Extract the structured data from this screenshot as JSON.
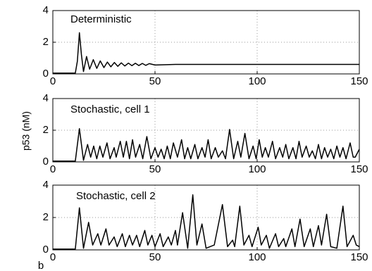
{
  "panel_label": "b",
  "chart_data": [
    {
      "type": "line",
      "title": "Deterministic",
      "color": "#000000",
      "grid": true,
      "xlim": [
        0,
        150
      ],
      "ylim": [
        0,
        4
      ],
      "xticks": [
        0,
        50,
        100,
        150
      ],
      "yticks": [
        0,
        2,
        4
      ],
      "x": [
        0,
        11,
        12,
        13,
        14,
        15,
        16.5,
        18,
        19.8,
        21.5,
        23.2,
        25,
        26.7,
        28.4,
        30.1,
        31.8,
        33.5,
        35.2,
        37,
        38.7,
        40.4,
        42.1,
        43.8,
        45.5,
        47.2,
        50,
        60,
        150
      ],
      "values": [
        0.05,
        0.05,
        0.8,
        2.6,
        1.2,
        0.15,
        1.1,
        0.3,
        0.9,
        0.35,
        0.82,
        0.4,
        0.75,
        0.45,
        0.72,
        0.48,
        0.7,
        0.5,
        0.68,
        0.52,
        0.67,
        0.53,
        0.66,
        0.54,
        0.65,
        0.56,
        0.6,
        0.6
      ]
    },
    {
      "type": "line",
      "title": "Stochastic, cell 1",
      "ylabel": "p53 (nM)",
      "color": "#000000",
      "grid": true,
      "xlim": [
        0,
        150
      ],
      "ylim": [
        0,
        4
      ],
      "xticks": [
        0,
        50,
        100,
        150
      ],
      "yticks": [
        0,
        2,
        4
      ],
      "x": [
        0,
        11,
        13,
        15,
        17,
        18.5,
        20,
        21.5,
        23,
        24.5,
        26.5,
        28,
        30,
        31,
        33,
        34.5,
        36,
        37.5,
        39,
        40.5,
        42.5,
        44,
        46,
        48,
        50,
        51.5,
        53,
        54.5,
        56,
        57.5,
        59,
        61,
        63,
        64.5,
        66,
        67.5,
        69.5,
        71,
        73,
        74.5,
        76,
        77.5,
        79.5,
        81,
        83,
        84.5,
        86.5,
        88.5,
        90.5,
        92,
        94,
        96,
        98,
        99.5,
        101,
        102.5,
        104,
        105.5,
        107.5,
        109,
        111,
        112.5,
        114,
        115.5,
        117.5,
        119,
        120.5,
        122,
        124,
        125.5,
        127,
        128.5,
        130,
        131.5,
        133,
        134.5,
        136,
        137.5,
        139,
        140.5,
        142,
        143.5,
        145.5,
        147,
        148,
        150
      ],
      "values": [
        0.05,
        0.05,
        2.1,
        0.1,
        1.1,
        0.3,
        1.0,
        0.2,
        1.0,
        0.3,
        1.2,
        0.2,
        0.9,
        0.3,
        1.3,
        0.3,
        1.3,
        0.2,
        1.4,
        0.3,
        1.1,
        0.2,
        1.6,
        0.2,
        0.9,
        0.3,
        0.8,
        0.2,
        1.0,
        0.2,
        1.2,
        0.3,
        1.4,
        0.2,
        0.9,
        0.2,
        1.1,
        0.2,
        0.9,
        0.3,
        1.4,
        0.2,
        0.9,
        0.3,
        0.7,
        0.2,
        2.05,
        0.2,
        1.3,
        0.3,
        1.8,
        0.2,
        1.0,
        0.2,
        1.4,
        0.3,
        0.9,
        0.3,
        1.3,
        0.2,
        0.9,
        0.3,
        1.1,
        0.2,
        0.9,
        0.2,
        1.3,
        0.3,
        1.0,
        0.3,
        0.7,
        0.2,
        1.1,
        0.2,
        0.9,
        0.3,
        0.8,
        0.2,
        1.0,
        0.3,
        0.9,
        0.2,
        1.2,
        0.3,
        0.3,
        0.8
      ]
    },
    {
      "type": "line",
      "title": "Stochastic, cell 2",
      "color": "#000000",
      "grid": true,
      "xlim": [
        0,
        150
      ],
      "ylim": [
        0,
        4
      ],
      "xticks": [
        0,
        50,
        100,
        150
      ],
      "yticks": [
        0,
        2,
        4
      ],
      "x": [
        0,
        11,
        13,
        15,
        17.5,
        19.5,
        22,
        23.5,
        26,
        27.5,
        30,
        31.5,
        34,
        35.5,
        37.5,
        39,
        41,
        42.5,
        45,
        46.5,
        48.5,
        50,
        52.5,
        54,
        56.5,
        58,
        60,
        61,
        63.5,
        66,
        68.5,
        70.5,
        73,
        75,
        79,
        83,
        85.5,
        88,
        89,
        91.5,
        93.5,
        96,
        97.5,
        100.5,
        102,
        104.5,
        106,
        109,
        110.5,
        113,
        114,
        117,
        118.5,
        121,
        123,
        126,
        127.5,
        130,
        131.5,
        134,
        136,
        139,
        142,
        144,
        147,
        148.5,
        150
      ],
      "values": [
        0.05,
        0.05,
        2.6,
        0.1,
        1.7,
        0.3,
        1.0,
        0.3,
        1.3,
        0.3,
        0.8,
        0.2,
        1.0,
        0.2,
        0.9,
        0.3,
        0.9,
        0.2,
        1.2,
        0.3,
        0.9,
        0.2,
        1.0,
        0.2,
        0.8,
        0.3,
        1.2,
        0.3,
        2.3,
        0.1,
        3.4,
        0.3,
        1.6,
        0.1,
        0.3,
        2.8,
        0.2,
        0.6,
        0.2,
        2.7,
        0.3,
        0.9,
        0.2,
        1.4,
        0.3,
        0.9,
        0.1,
        1.0,
        0.2,
        0.7,
        0.2,
        1.3,
        0.2,
        1.9,
        0.2,
        1.3,
        0.2,
        1.5,
        0.3,
        2.2,
        0.2,
        0.1,
        2.7,
        0.2,
        0.9,
        0.3,
        0.2
      ]
    }
  ]
}
